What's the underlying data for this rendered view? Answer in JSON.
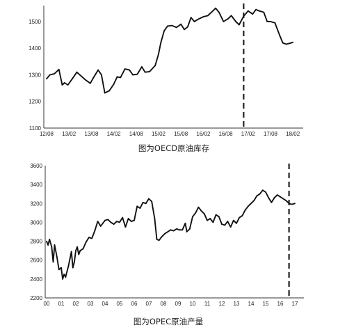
{
  "chart_data": [
    {
      "type": "line",
      "title": "图为OECD原油库存",
      "categories": [
        "12/08",
        "13/02",
        "13/08",
        "14/02",
        "14/08",
        "15/02",
        "15/08",
        "16/02",
        "16/08",
        "17/02",
        "17/08",
        "18/02"
      ],
      "y_ticks": [
        "1100",
        "1200",
        "1300",
        "1400",
        "1500"
      ],
      "ylim": [
        1100,
        1560
      ],
      "x_range": [
        0,
        11
      ],
      "grid": false,
      "legend": "none",
      "divider_x": 8.8,
      "line_color": "#111111",
      "series": [
        {
          "values": [
            [
              0.0,
              1285
            ],
            [
              0.15,
              1300
            ],
            [
              0.35,
              1304
            ],
            [
              0.55,
              1320
            ],
            [
              0.7,
              1262
            ],
            [
              0.8,
              1270
            ],
            [
              0.95,
              1262
            ],
            [
              1.15,
              1285
            ],
            [
              1.35,
              1310
            ],
            [
              1.55,
              1295
            ],
            [
              1.75,
              1280
            ],
            [
              1.95,
              1268
            ],
            [
              2.1,
              1290
            ],
            [
              2.3,
              1318
            ],
            [
              2.45,
              1300
            ],
            [
              2.6,
              1232
            ],
            [
              2.8,
              1240
            ],
            [
              3.0,
              1265
            ],
            [
              3.15,
              1292
            ],
            [
              3.3,
              1290
            ],
            [
              3.5,
              1322
            ],
            [
              3.7,
              1318
            ],
            [
              3.85,
              1300
            ],
            [
              4.05,
              1302
            ],
            [
              4.25,
              1330
            ],
            [
              4.4,
              1310
            ],
            [
              4.6,
              1312
            ],
            [
              4.85,
              1335
            ],
            [
              5.0,
              1378
            ],
            [
              5.1,
              1420
            ],
            [
              5.25,
              1465
            ],
            [
              5.4,
              1483
            ],
            [
              5.6,
              1485
            ],
            [
              5.8,
              1478
            ],
            [
              6.0,
              1490
            ],
            [
              6.15,
              1470
            ],
            [
              6.3,
              1480
            ],
            [
              6.45,
              1515
            ],
            [
              6.6,
              1500
            ],
            [
              6.8,
              1510
            ],
            [
              7.0,
              1518
            ],
            [
              7.2,
              1522
            ],
            [
              7.4,
              1538
            ],
            [
              7.55,
              1550
            ],
            [
              7.7,
              1535
            ],
            [
              7.9,
              1500
            ],
            [
              8.1,
              1510
            ],
            [
              8.25,
              1522
            ],
            [
              8.45,
              1500
            ],
            [
              8.6,
              1488
            ],
            [
              8.8,
              1520
            ],
            [
              9.0,
              1540
            ],
            [
              9.2,
              1528
            ],
            [
              9.35,
              1545
            ],
            [
              9.5,
              1540
            ],
            [
              9.7,
              1535
            ],
            [
              9.85,
              1500
            ],
            [
              10.0,
              1500
            ],
            [
              10.2,
              1495
            ],
            [
              10.4,
              1450
            ],
            [
              10.55,
              1420
            ],
            [
              10.7,
              1415
            ],
            [
              10.85,
              1418
            ],
            [
              11.0,
              1422
            ]
          ]
        }
      ]
    },
    {
      "type": "line",
      "title": "图为OPEC原油产量",
      "categories": [
        "00",
        "01",
        "02",
        "03",
        "04",
        "05",
        "06",
        "07",
        "08",
        "09",
        "10",
        "11",
        "12",
        "13",
        "14",
        "15",
        "16",
        "17"
      ],
      "y_ticks": [
        "2200",
        "2400",
        "2600",
        "2800",
        "3000",
        "3200",
        "3400",
        "3600"
      ],
      "ylim": [
        2200,
        3600
      ],
      "x_range": [
        0,
        17.3
      ],
      "grid": false,
      "legend": "none",
      "divider_x": 16.6,
      "line_color": "#111111",
      "series": [
        {
          "values": [
            [
              0.0,
              2800
            ],
            [
              0.1,
              2760
            ],
            [
              0.2,
              2820
            ],
            [
              0.35,
              2740
            ],
            [
              0.45,
              2580
            ],
            [
              0.55,
              2760
            ],
            [
              0.7,
              2640
            ],
            [
              0.85,
              2500
            ],
            [
              1.0,
              2520
            ],
            [
              1.1,
              2400
            ],
            [
              1.2,
              2450
            ],
            [
              1.3,
              2420
            ],
            [
              1.5,
              2540
            ],
            [
              1.7,
              2690
            ],
            [
              1.8,
              2520
            ],
            [
              1.9,
              2580
            ],
            [
              2.0,
              2700
            ],
            [
              2.1,
              2740
            ],
            [
              2.2,
              2660
            ],
            [
              2.3,
              2700
            ],
            [
              2.5,
              2720
            ],
            [
              2.7,
              2790
            ],
            [
              2.9,
              2840
            ],
            [
              3.1,
              2830
            ],
            [
              3.3,
              2910
            ],
            [
              3.5,
              3010
            ],
            [
              3.7,
              2960
            ],
            [
              4.0,
              3020
            ],
            [
              4.2,
              3030
            ],
            [
              4.4,
              3000
            ],
            [
              4.6,
              2980
            ],
            [
              4.8,
              3010
            ],
            [
              5.0,
              3000
            ],
            [
              5.2,
              3050
            ],
            [
              5.4,
              2950
            ],
            [
              5.6,
              3040
            ],
            [
              5.8,
              3010
            ],
            [
              6.0,
              3020
            ],
            [
              6.2,
              3170
            ],
            [
              6.4,
              3150
            ],
            [
              6.6,
              3210
            ],
            [
              6.8,
              3200
            ],
            [
              7.0,
              3250
            ],
            [
              7.2,
              3220
            ],
            [
              7.4,
              3040
            ],
            [
              7.55,
              2820
            ],
            [
              7.7,
              2810
            ],
            [
              7.9,
              2850
            ],
            [
              8.1,
              2880
            ],
            [
              8.3,
              2900
            ],
            [
              8.5,
              2920
            ],
            [
              8.7,
              2910
            ],
            [
              8.9,
              2930
            ],
            [
              9.1,
              2920
            ],
            [
              9.3,
              2920
            ],
            [
              9.5,
              2990
            ],
            [
              9.6,
              2900
            ],
            [
              9.8,
              2930
            ],
            [
              10.0,
              3060
            ],
            [
              10.2,
              3100
            ],
            [
              10.4,
              3160
            ],
            [
              10.6,
              3120
            ],
            [
              10.8,
              3090
            ],
            [
              11.0,
              3020
            ],
            [
              11.2,
              3040
            ],
            [
              11.4,
              3000
            ],
            [
              11.6,
              3080
            ],
            [
              11.8,
              3060
            ],
            [
              12.0,
              2980
            ],
            [
              12.2,
              2970
            ],
            [
              12.4,
              3010
            ],
            [
              12.6,
              2950
            ],
            [
              12.8,
              3020
            ],
            [
              13.0,
              2990
            ],
            [
              13.2,
              3050
            ],
            [
              13.4,
              3070
            ],
            [
              13.6,
              3130
            ],
            [
              13.8,
              3170
            ],
            [
              14.0,
              3200
            ],
            [
              14.2,
              3230
            ],
            [
              14.4,
              3280
            ],
            [
              14.6,
              3300
            ],
            [
              14.8,
              3340
            ],
            [
              15.0,
              3320
            ],
            [
              15.2,
              3260
            ],
            [
              15.4,
              3210
            ],
            [
              15.6,
              3260
            ],
            [
              15.8,
              3290
            ],
            [
              16.0,
              3270
            ],
            [
              16.2,
              3250
            ],
            [
              16.4,
              3230
            ],
            [
              16.6,
              3200
            ],
            [
              16.8,
              3190
            ],
            [
              17.0,
              3200
            ]
          ]
        }
      ]
    }
  ]
}
